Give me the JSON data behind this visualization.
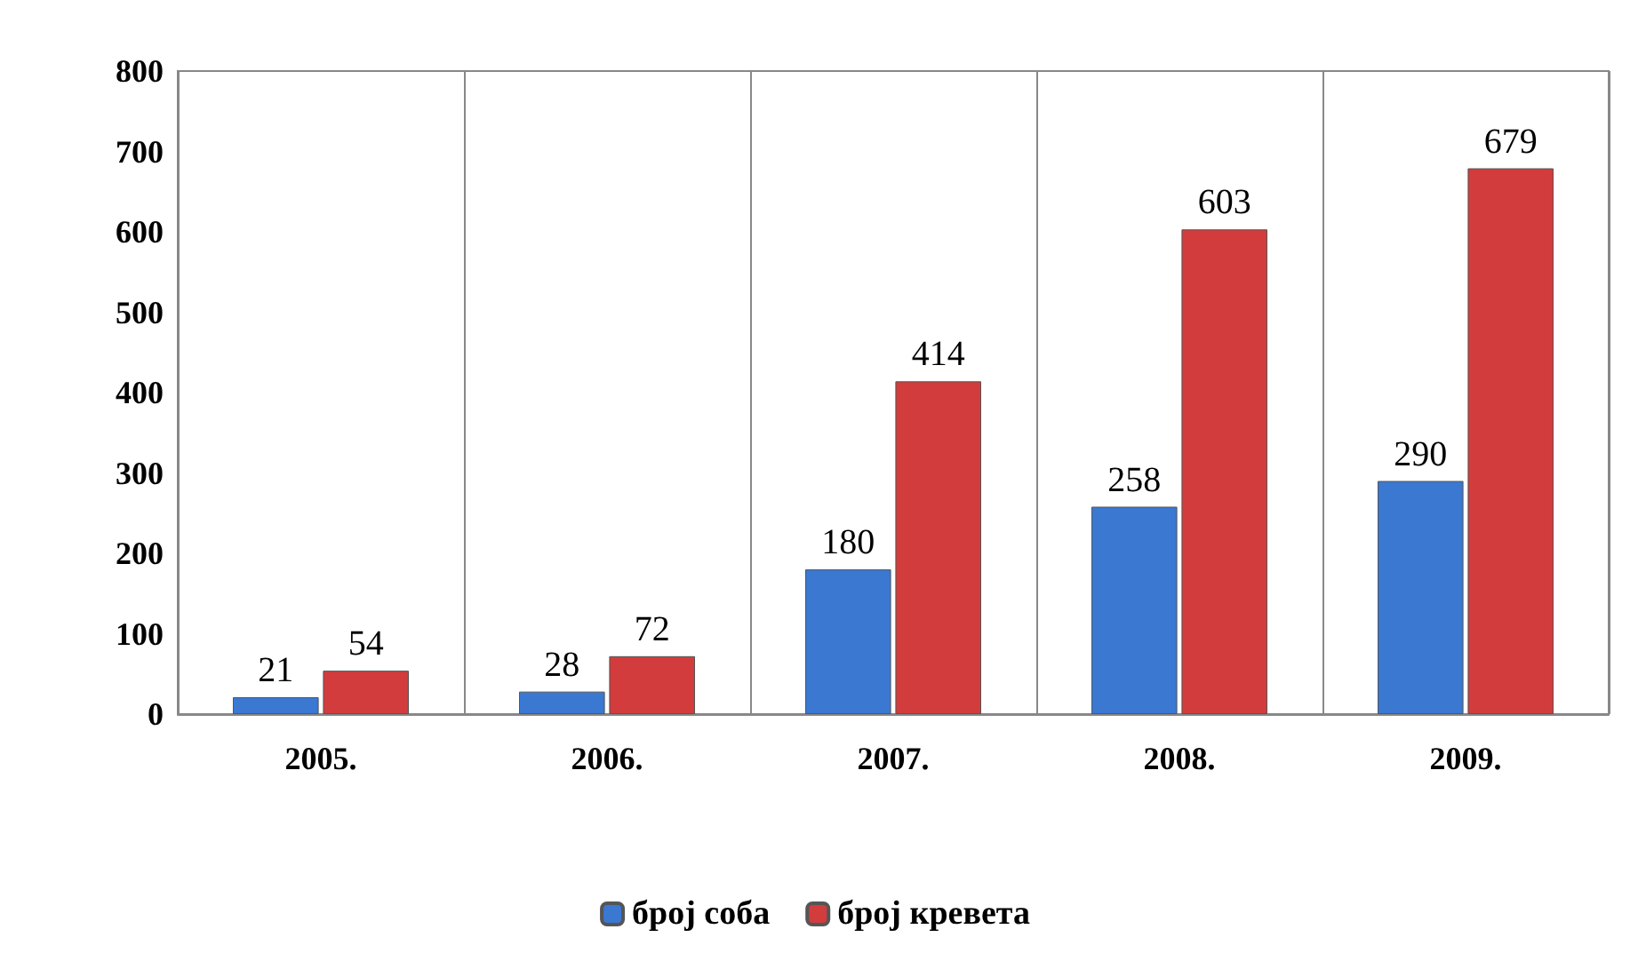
{
  "chart_data": {
    "type": "bar",
    "categories": [
      "2005.",
      "2006.",
      "2007.",
      "2008.",
      "2009."
    ],
    "series": [
      {
        "name": "број соба",
        "color": "#3a78d2",
        "values": [
          21,
          28,
          180,
          258,
          290
        ]
      },
      {
        "name": "број кревета",
        "color": "#d23c3c",
        "values": [
          54,
          72,
          414,
          603,
          679
        ]
      }
    ],
    "ylim": [
      0,
      800
    ],
    "yticks": [
      0,
      100,
      200,
      300,
      400,
      500,
      600,
      700,
      800
    ],
    "grid": "x",
    "legend": "bottom",
    "data_labels": true
  }
}
